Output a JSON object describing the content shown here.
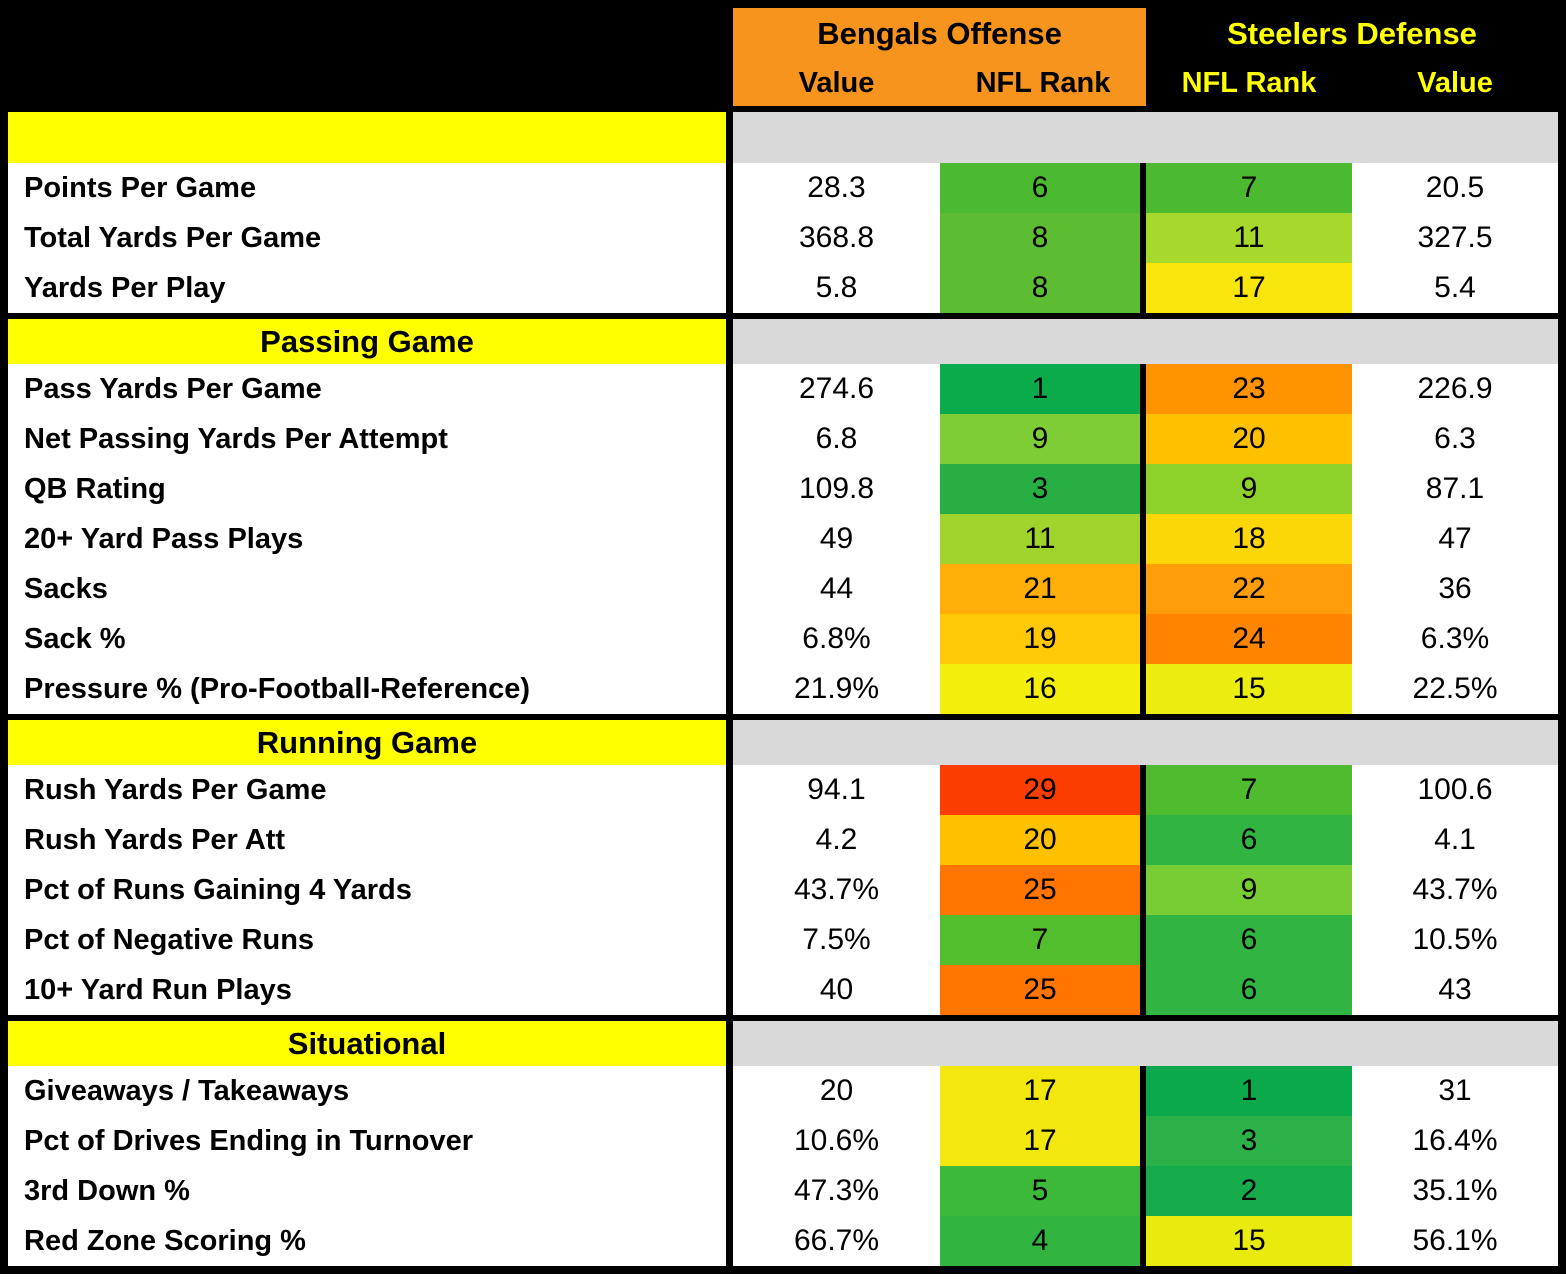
{
  "chart_data": {
    "type": "table",
    "column_groups": [
      {
        "title": "Bengals Offense",
        "columns": [
          "Value",
          "NFL Rank"
        ],
        "header_bg": "#F7941D",
        "header_text": "#000000"
      },
      {
        "title": "Steelers Defense",
        "columns": [
          "NFL Rank",
          "Value"
        ],
        "header_bg": "#000000",
        "header_text": "#FFFF00"
      }
    ],
    "sections": [
      {
        "title": "",
        "rows": [
          {
            "label": "Points Per Game",
            "off_value": "28.3",
            "off_rank": "6",
            "off_color": "#4BBA31",
            "def_rank": "7",
            "def_color": "#4BBA31",
            "def_value": "20.5"
          },
          {
            "label": "Total Yards Per Game",
            "off_value": "368.8",
            "off_rank": "8",
            "off_color": "#5CBD33",
            "def_rank": "11",
            "def_color": "#A6D92B",
            "def_value": "327.5"
          },
          {
            "label": "Yards Per Play",
            "off_value": "5.8",
            "off_rank": "8",
            "off_color": "#5CBD33",
            "def_rank": "17",
            "def_color": "#F7E50C",
            "def_value": "5.4"
          }
        ]
      },
      {
        "title": "Passing Game",
        "rows": [
          {
            "label": "Pass Yards Per Game",
            "off_value": "274.6",
            "off_rank": "1",
            "off_color": "#0BAB4C",
            "def_rank": "23",
            "def_color": "#FF9300",
            "def_value": "226.9"
          },
          {
            "label": "Net Passing Yards Per Attempt",
            "off_value": "6.8",
            "off_rank": "9",
            "off_color": "#7ECC36",
            "def_rank": "20",
            "def_color": "#FFC000",
            "def_value": "6.3"
          },
          {
            "label": "QB Rating",
            "off_value": "109.8",
            "off_rank": "3",
            "off_color": "#27AF44",
            "def_rank": "9",
            "def_color": "#8CD22A",
            "def_value": "87.1"
          },
          {
            "label": "20+ Yard Pass Plays",
            "off_value": "49",
            "off_rank": "11",
            "off_color": "#A0D42C",
            "def_rank": "18",
            "def_color": "#FBD708",
            "def_value": "47"
          },
          {
            "label": "Sacks",
            "off_value": "44",
            "off_rank": "21",
            "off_color": "#FFAF07",
            "def_rank": "22",
            "def_color": "#FF9D0A",
            "def_value": "36"
          },
          {
            "label": "Sack %",
            "off_value": "6.8%",
            "off_rank": "19",
            "off_color": "#FFC907",
            "def_rank": "24",
            "def_color": "#FF8400",
            "def_value": "6.3%"
          },
          {
            "label": "Pressure % (Pro-Football-Reference)",
            "off_value": "21.9%",
            "off_rank": "16",
            "off_color": "#F4EE0D",
            "def_rank": "15",
            "def_color": "#EBEC10",
            "def_value": "22.5%"
          }
        ]
      },
      {
        "title": "Running Game",
        "rows": [
          {
            "label": "Rush Yards Per Game",
            "off_value": "94.1",
            "off_rank": "29",
            "off_color": "#FB3D00",
            "def_rank": "7",
            "def_color": "#4FBC30",
            "def_value": "100.6"
          },
          {
            "label": "Rush Yards Per Att",
            "off_value": "4.2",
            "off_rank": "20",
            "off_color": "#FFC000",
            "def_rank": "6",
            "def_color": "#31B442",
            "def_value": "4.1"
          },
          {
            "label": "Pct of Runs Gaining 4 Yards",
            "off_value": "43.7%",
            "off_rank": "25",
            "off_color": "#FF7500",
            "def_rank": "9",
            "def_color": "#77CD33",
            "def_value": "43.7%"
          },
          {
            "label": "Pct of Negative Runs",
            "off_value": "7.5%",
            "off_rank": "7",
            "off_color": "#52BE2E",
            "def_rank": "6",
            "def_color": "#31B442",
            "def_value": "10.5%"
          },
          {
            "label": "10+ Yard Run Plays",
            "off_value": "40",
            "off_rank": "25",
            "off_color": "#FF7500",
            "def_rank": "6",
            "def_color": "#31B442",
            "def_value": "43"
          }
        ]
      },
      {
        "title": "Situational",
        "rows": [
          {
            "label": "Giveaways / Takeaways",
            "off_value": "20",
            "off_rank": "17",
            "off_color": "#F2E70F",
            "def_rank": "1",
            "def_color": "#0CA94C",
            "def_value": "31"
          },
          {
            "label": "Pct of Drives Ending in Turnover",
            "off_value": "10.6%",
            "off_rank": "17",
            "off_color": "#F2E70F",
            "def_rank": "3",
            "def_color": "#2BB148",
            "def_value": "16.4%"
          },
          {
            "label": "3rd Down %",
            "off_value": "47.3%",
            "off_rank": "5",
            "off_color": "#3CB83A",
            "def_rank": "2",
            "def_color": "#16AB4A",
            "def_value": "35.1%"
          },
          {
            "label": "Red Zone Scoring %",
            "off_value": "66.7%",
            "off_rank": "4",
            "off_color": "#31B440",
            "def_rank": "15",
            "def_color": "#E9EB0E",
            "def_value": "56.1%"
          }
        ]
      }
    ]
  },
  "colors": {
    "section_band": "#FFFF00",
    "section_fill": "#D9D9D9",
    "grid_black": "#000000",
    "row_white": "#FFFFFF",
    "bengals_header_orange": "#F7941D",
    "steelers_header_yellow": "#FFFF00"
  }
}
